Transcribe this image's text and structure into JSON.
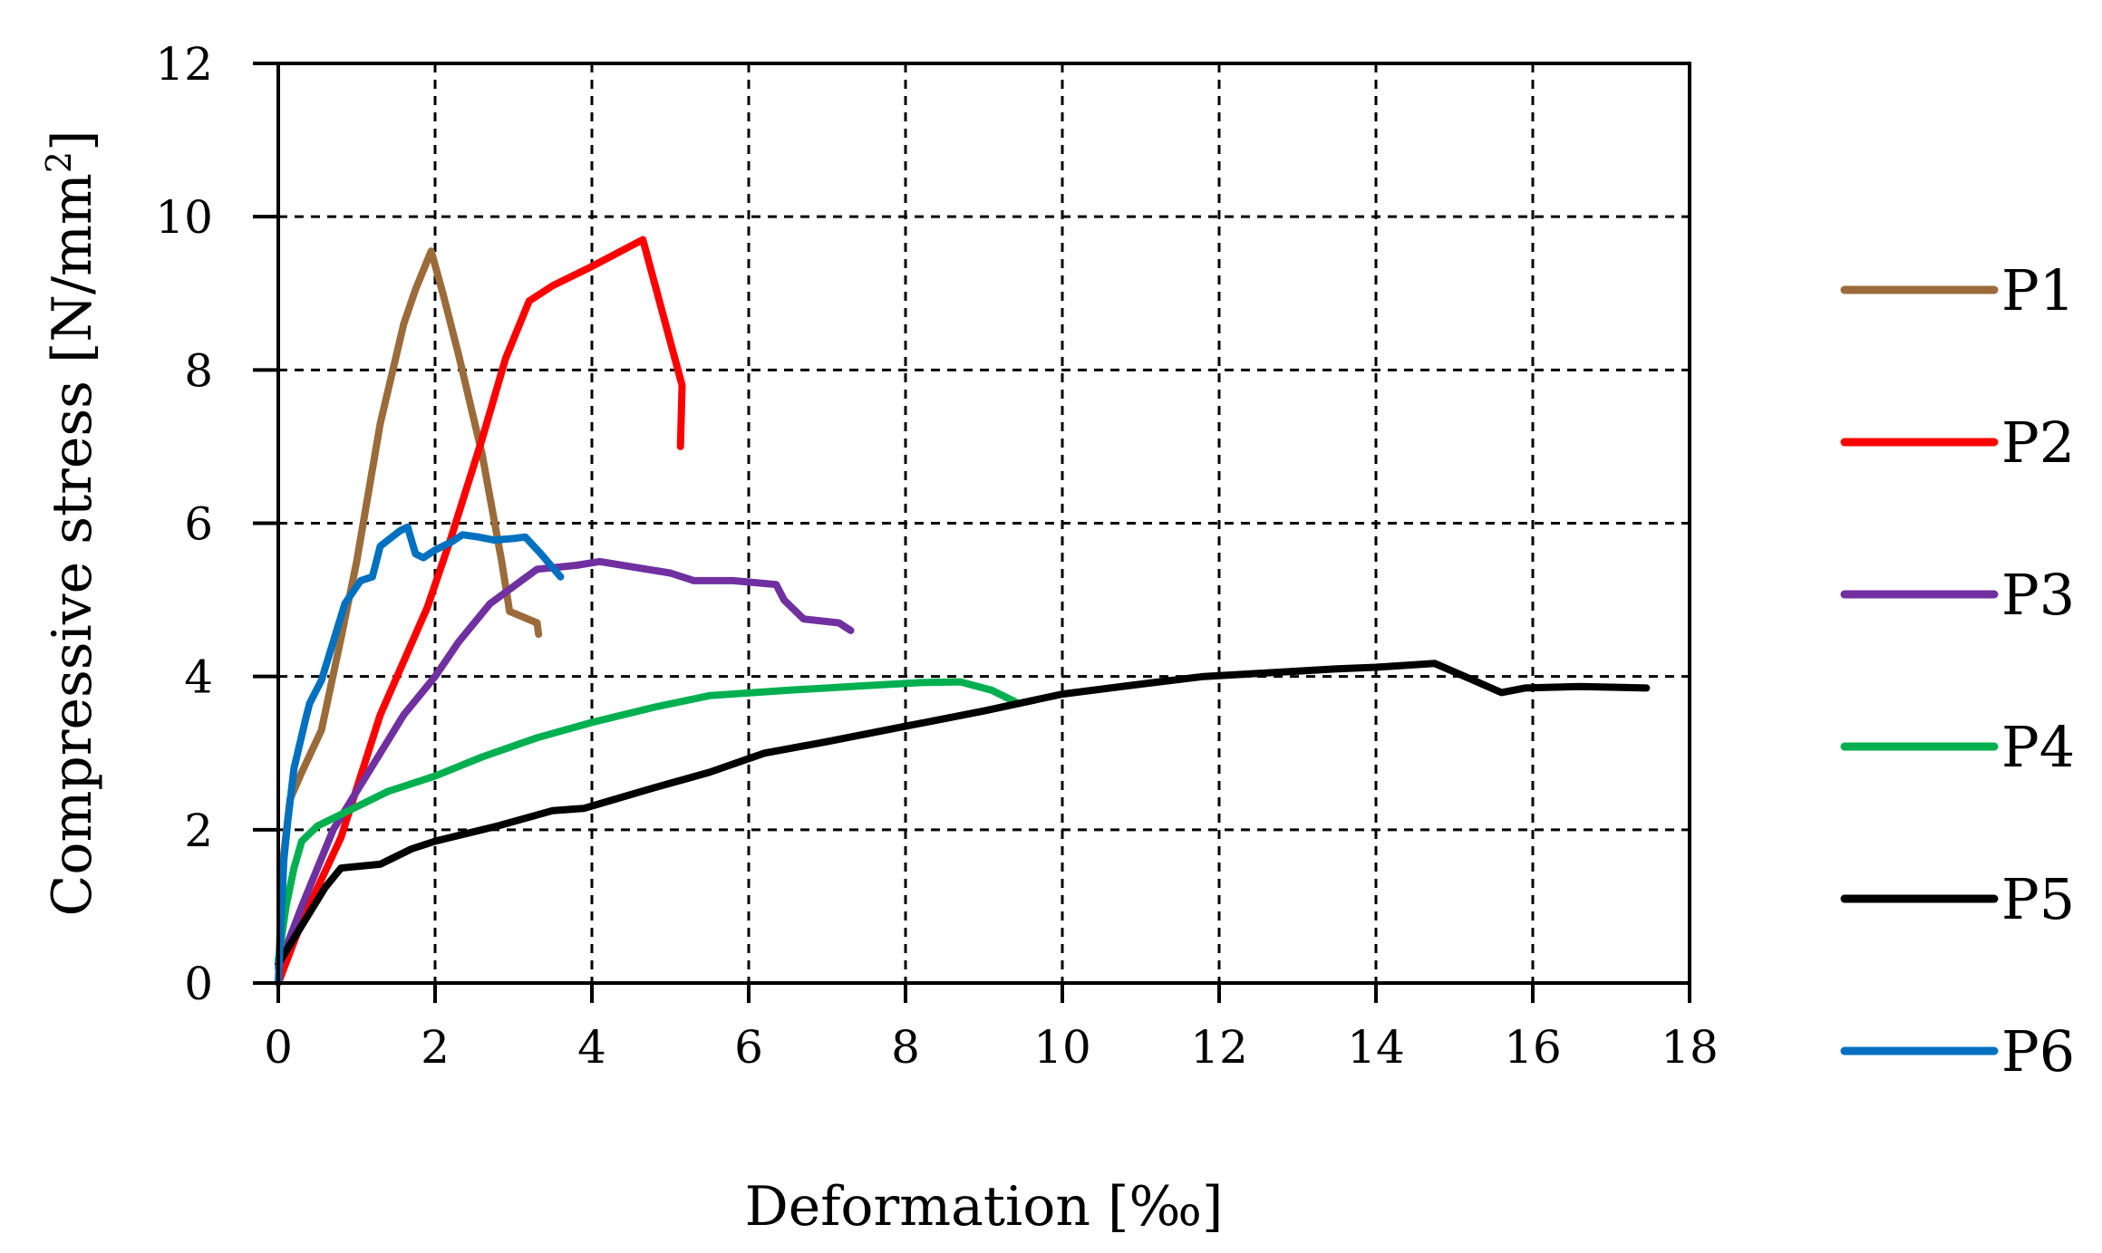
{
  "chart_data": {
    "type": "line",
    "title": "",
    "xlabel": "Deformation [‰]",
    "ylabel_main": "Compressive stress [N/mm",
    "ylabel_sup": "2",
    "ylabel_end": "]",
    "xlim": [
      0,
      18
    ],
    "ylim": [
      0,
      12
    ],
    "xticks": [
      0,
      2,
      4,
      6,
      8,
      10,
      12,
      14,
      16,
      18
    ],
    "yticks": [
      0,
      2,
      4,
      6,
      8,
      10,
      12
    ],
    "grid": true,
    "legend_position": "right",
    "series": [
      {
        "name": "P1",
        "color": "#9B6B3A",
        "points": [
          [
            0,
            0
          ],
          [
            0.05,
            1.5
          ],
          [
            0.15,
            2.4
          ],
          [
            0.3,
            2.75
          ],
          [
            0.55,
            3.3
          ],
          [
            0.8,
            4.5
          ],
          [
            1.0,
            5.5
          ],
          [
            1.3,
            7.3
          ],
          [
            1.6,
            8.6
          ],
          [
            1.75,
            9.05
          ],
          [
            1.95,
            9.55
          ],
          [
            2.1,
            9.0
          ],
          [
            2.3,
            8.2
          ],
          [
            2.6,
            6.9
          ],
          [
            2.85,
            5.5
          ],
          [
            2.95,
            4.85
          ],
          [
            3.3,
            4.7
          ],
          [
            3.32,
            4.55
          ]
        ]
      },
      {
        "name": "P2",
        "color": "#FF0000",
        "points": [
          [
            0,
            0
          ],
          [
            0.3,
            0.8
          ],
          [
            0.8,
            1.9
          ],
          [
            1.3,
            3.5
          ],
          [
            1.9,
            4.9
          ],
          [
            2.2,
            5.8
          ],
          [
            2.6,
            7.1
          ],
          [
            2.9,
            8.15
          ],
          [
            3.2,
            8.9
          ],
          [
            3.5,
            9.1
          ],
          [
            4.0,
            9.35
          ],
          [
            4.65,
            9.7
          ],
          [
            5.15,
            7.8
          ],
          [
            5.13,
            7.0
          ]
        ]
      },
      {
        "name": "P3",
        "color": "#7030A0",
        "points": [
          [
            0,
            0.2
          ],
          [
            0.3,
            1.0
          ],
          [
            0.7,
            2.0
          ],
          [
            1.0,
            2.5
          ],
          [
            1.3,
            3.0
          ],
          [
            1.6,
            3.5
          ],
          [
            2.0,
            4.0
          ],
          [
            2.3,
            4.45
          ],
          [
            2.7,
            4.95
          ],
          [
            3.3,
            5.4
          ],
          [
            3.8,
            5.45
          ],
          [
            4.1,
            5.5
          ],
          [
            4.7,
            5.4
          ],
          [
            5.0,
            5.35
          ],
          [
            5.3,
            5.25
          ],
          [
            5.8,
            5.25
          ],
          [
            6.35,
            5.2
          ],
          [
            6.45,
            5.0
          ],
          [
            6.7,
            4.75
          ],
          [
            7.15,
            4.7
          ],
          [
            7.3,
            4.6
          ]
        ]
      },
      {
        "name": "P4",
        "color": "#00B050",
        "points": [
          [
            0,
            0.3
          ],
          [
            0.1,
            1.0
          ],
          [
            0.2,
            1.5
          ],
          [
            0.3,
            1.85
          ],
          [
            0.5,
            2.05
          ],
          [
            0.9,
            2.25
          ],
          [
            1.4,
            2.5
          ],
          [
            2.0,
            2.7
          ],
          [
            2.6,
            2.95
          ],
          [
            3.3,
            3.2
          ],
          [
            4.0,
            3.4
          ],
          [
            4.8,
            3.6
          ],
          [
            5.5,
            3.75
          ],
          [
            6.5,
            3.82
          ],
          [
            7.5,
            3.88
          ],
          [
            8.2,
            3.92
          ],
          [
            8.7,
            3.93
          ],
          [
            9.1,
            3.82
          ],
          [
            9.4,
            3.67
          ]
        ]
      },
      {
        "name": "P5",
        "color": "#000000",
        "points": [
          [
            0,
            0.25
          ],
          [
            0.3,
            0.75
          ],
          [
            0.6,
            1.25
          ],
          [
            0.8,
            1.5
          ],
          [
            1.3,
            1.55
          ],
          [
            1.7,
            1.75
          ],
          [
            2.0,
            1.85
          ],
          [
            2.8,
            2.05
          ],
          [
            3.5,
            2.25
          ],
          [
            3.9,
            2.28
          ],
          [
            4.3,
            2.4
          ],
          [
            4.8,
            2.55
          ],
          [
            5.5,
            2.75
          ],
          [
            6.2,
            3.0
          ],
          [
            7.0,
            3.15
          ],
          [
            8.0,
            3.35
          ],
          [
            9.0,
            3.55
          ],
          [
            10.0,
            3.77
          ],
          [
            11.0,
            3.9
          ],
          [
            11.8,
            4.0
          ],
          [
            12.5,
            4.04
          ],
          [
            13.5,
            4.1
          ],
          [
            14.0,
            4.12
          ],
          [
            14.75,
            4.17
          ],
          [
            15.2,
            3.97
          ],
          [
            15.6,
            3.79
          ],
          [
            15.9,
            3.85
          ],
          [
            16.6,
            3.87
          ],
          [
            17.0,
            3.86
          ],
          [
            17.45,
            3.85
          ]
        ]
      },
      {
        "name": "P6",
        "color": "#0070C0",
        "points": [
          [
            0,
            0
          ],
          [
            0.07,
            1.6
          ],
          [
            0.12,
            2.1
          ],
          [
            0.2,
            2.8
          ],
          [
            0.35,
            3.45
          ],
          [
            0.4,
            3.65
          ],
          [
            0.55,
            3.95
          ],
          [
            0.85,
            4.95
          ],
          [
            1.05,
            5.25
          ],
          [
            1.2,
            5.3
          ],
          [
            1.3,
            5.7
          ],
          [
            1.55,
            5.9
          ],
          [
            1.65,
            5.95
          ],
          [
            1.75,
            5.6
          ],
          [
            1.85,
            5.55
          ],
          [
            2.0,
            5.65
          ],
          [
            2.2,
            5.75
          ],
          [
            2.35,
            5.85
          ],
          [
            2.55,
            5.82
          ],
          [
            2.75,
            5.78
          ],
          [
            3.0,
            5.8
          ],
          [
            3.15,
            5.82
          ],
          [
            3.35,
            5.6
          ],
          [
            3.6,
            5.3
          ]
        ]
      }
    ]
  }
}
